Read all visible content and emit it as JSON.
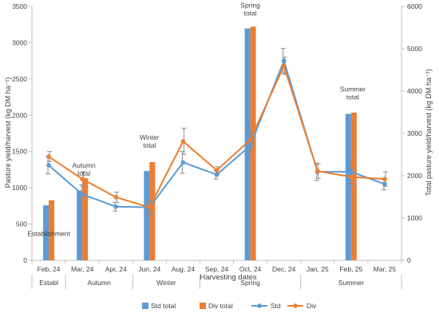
{
  "chart_data": {
    "type": "bar+line",
    "xlabel": "Harvesting dates",
    "ylabel_left": "Pasture yield/harvest (kg DM ha⁻¹)",
    "ylabel_right": "Total pasture yield/harvest (kg DM ha⁻¹)",
    "ylim_left": [
      0,
      3500
    ],
    "ylim_right": [
      0,
      6000
    ],
    "yticks_left": [
      0,
      500,
      1000,
      1500,
      2000,
      2500,
      3000,
      3500
    ],
    "yticks_right": [
      0,
      1000,
      2000,
      3000,
      4000,
      5000,
      6000
    ],
    "categories": [
      "Feb, 24",
      "Mar, 24",
      "Apr, 24",
      "Jun, 24",
      "Aug, 24",
      "Sep, 24",
      "Oct, 24",
      "Dec, 24",
      "Jan, 25",
      "Feb, 25",
      "Mar, 25"
    ],
    "season_groups": [
      {
        "label": "Establ",
        "start": 0,
        "end": 0
      },
      {
        "label": "Autumn",
        "start": 1,
        "end": 2
      },
      {
        "label": "Winter",
        "start": 3,
        "end": 4
      },
      {
        "label": "Spring",
        "start": 5,
        "end": 7
      },
      {
        "label": "Summer",
        "start": 8,
        "end": 10
      }
    ],
    "bars": [
      {
        "name": "Std total",
        "color": "#5B9BD5",
        "axis": "right",
        "values": [
          1300,
          1650,
          null,
          2110,
          null,
          null,
          5480,
          null,
          null,
          3460,
          null
        ]
      },
      {
        "name": "Div total",
        "color": "#ED7D31",
        "axis": "right",
        "values": [
          1420,
          1940,
          null,
          2320,
          null,
          null,
          5520,
          null,
          null,
          3490,
          null
        ]
      }
    ],
    "lines": [
      {
        "name": "Std",
        "color": "#5B9BD5",
        "axis": "left",
        "values": [
          1310,
          910,
          740,
          730,
          1350,
          1180,
          1580,
          2750,
          1220,
          1220,
          1050
        ],
        "errors": [
          120,
          130,
          60,
          100,
          150,
          60,
          150,
          170,
          120,
          160,
          80
        ]
      },
      {
        "name": "Div",
        "color": "#ED7D31",
        "axis": "left",
        "values": [
          1430,
          1120,
          870,
          730,
          1640,
          1240,
          1660,
          2680,
          1230,
          1150,
          1120
        ],
        "errors": [
          70,
          100,
          70,
          90,
          180,
          50,
          130,
          120,
          100,
          110,
          100
        ]
      }
    ],
    "annotations": [
      {
        "text": [
          "Establishment"
        ],
        "category": 0
      },
      {
        "text": [
          "Autumn",
          "total"
        ],
        "category": 1
      },
      {
        "text": [
          "Winter",
          "total"
        ],
        "category": 3
      },
      {
        "text": [
          "Spring",
          "total"
        ],
        "category": 6
      },
      {
        "text": [
          "Summer",
          "total"
        ],
        "category": 9
      }
    ],
    "legend": [
      "Std total",
      "Div total",
      "Std",
      "Div"
    ],
    "legend_position": "bottom",
    "grid": false
  }
}
